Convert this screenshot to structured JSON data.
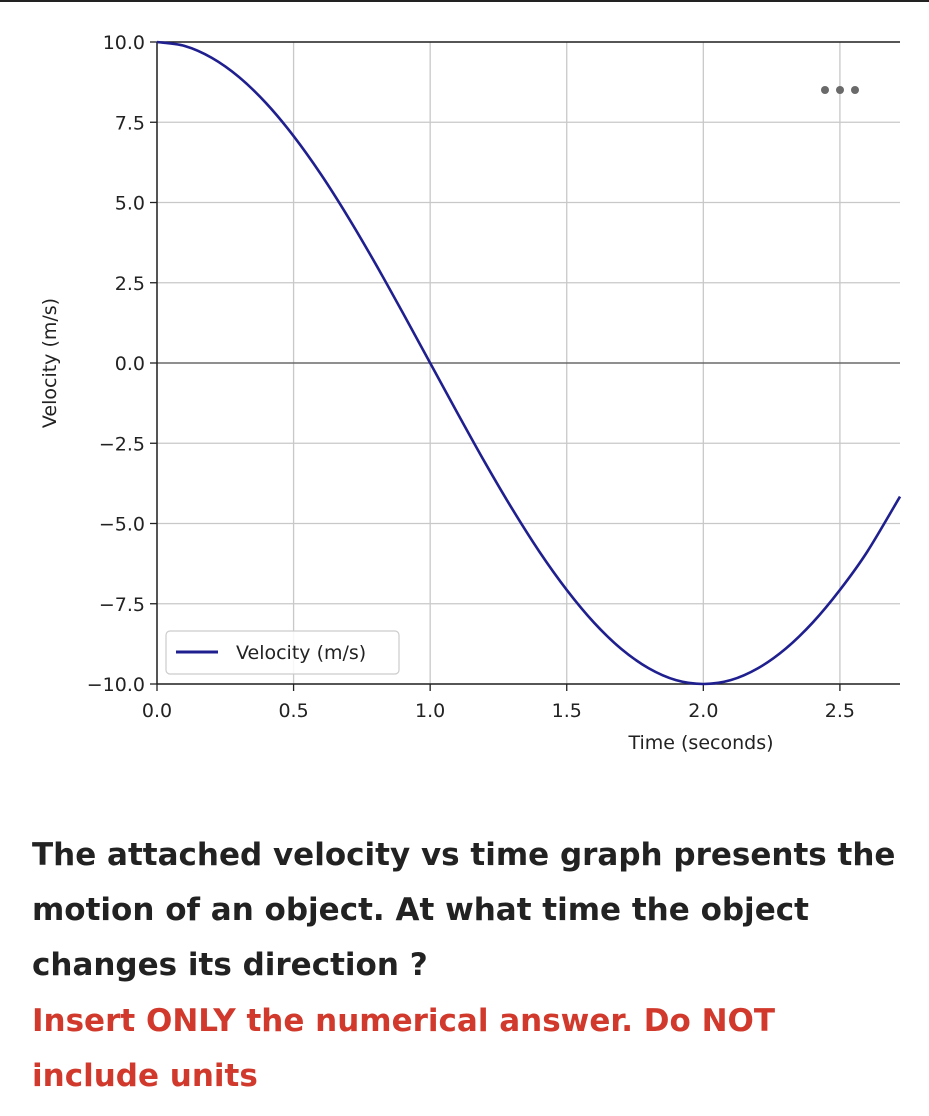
{
  "chart_data": {
    "type": "line",
    "title": "",
    "xlabel": "Time (seconds)",
    "ylabel": "Velocity (m/s)",
    "xlim": [
      0.0,
      2.72
    ],
    "ylim": [
      -10.0,
      10.0
    ],
    "xticks": [
      "0.0",
      "0.5",
      "1.0",
      "1.5",
      "2.0",
      "2.5"
    ],
    "xtick_values": [
      0.0,
      0.5,
      1.0,
      1.5,
      2.0,
      2.5
    ],
    "yticks": [
      "10.0",
      "7.5",
      "5.0",
      "2.5",
      "0.0",
      "−2.5",
      "−5.0",
      "−7.5",
      "−10.0"
    ],
    "ytick_values": [
      10.0,
      7.5,
      5.0,
      2.5,
      0.0,
      -2.5,
      -5.0,
      -7.5,
      -10.0
    ],
    "grid": true,
    "legend_position": "lower-left",
    "series": [
      {
        "name": "Velocity (m/s)",
        "color": "#1f1f8f",
        "x": [
          0.0,
          0.1,
          0.2,
          0.3,
          0.4,
          0.5,
          0.6,
          0.7,
          0.8,
          0.9,
          1.0,
          1.1,
          1.2,
          1.3,
          1.4,
          1.5,
          1.6,
          1.7,
          1.8,
          1.9,
          2.0,
          2.1,
          2.2,
          2.3,
          2.4,
          2.5,
          2.6,
          2.72
        ],
        "y": [
          10.0,
          9.88,
          9.51,
          8.91,
          8.09,
          7.07,
          5.88,
          4.54,
          3.09,
          1.56,
          0.0,
          -1.56,
          -3.09,
          -4.54,
          -5.88,
          -7.07,
          -8.09,
          -8.91,
          -9.51,
          -9.88,
          -10.0,
          -9.88,
          -9.51,
          -8.91,
          -8.09,
          -7.07,
          -5.88,
          -4.16
        ]
      }
    ]
  },
  "question": {
    "text": "The attached velocity vs time graph presents the motion of an object. At what time the object changes its direction ?",
    "instruction": "Insert ONLY the numerical answer. Do NOT include units",
    "instruction_color": "#d0392b"
  },
  "overlay": {
    "icon": "more-dots-icon"
  }
}
